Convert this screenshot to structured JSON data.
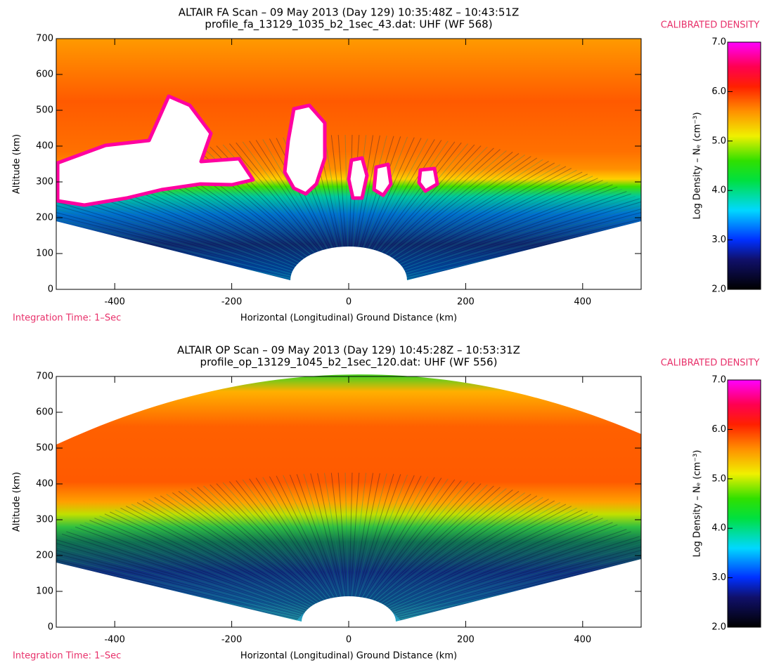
{
  "chart_data": [
    {
      "type": "heatmap",
      "title": "ALTAIR FA Scan – 09 May 2013 (Day 129) 10:35:48Z – 10:43:51Z",
      "subtitle": "profile_fa_13129_1035_b2_1sec_43.dat: UHF (WF 568)",
      "x_label": "Horizontal (Longitudinal) Ground Distance (km)",
      "y_label": "Altitude (km)",
      "annotation": "Integration Time: 1–Sec",
      "xlim": [
        -500,
        500
      ],
      "xticks": [
        -400,
        -200,
        0,
        200,
        400
      ],
      "ylim": [
        0,
        700
      ],
      "yticks": [
        0,
        100,
        200,
        300,
        400,
        500,
        600,
        700
      ],
      "colorbar_title": "CALIBRATED DENSITY",
      "colorbar_label": "Log Density – Nₑ (cm⁻³)",
      "clim": [
        2,
        7
      ],
      "cticks": [
        {
          "value": 2,
          "label": "2.0"
        },
        {
          "value": 3,
          "label": "3.0"
        },
        {
          "value": 4,
          "label": "4.0"
        },
        {
          "value": 5,
          "label": "5.0"
        },
        {
          "value": 6,
          "label": "6.0"
        },
        {
          "value": 7,
          "label": "7.0"
        }
      ]
    },
    {
      "type": "heatmap",
      "title": "ALTAIR OP Scan – 09 May 2013 (Day 129) 10:45:28Z – 10:53:31Z",
      "subtitle": "profile_op_13129_1045_b2_1sec_120.dat: UHF (WF 556)",
      "x_label": "Horizontal (Longitudinal) Ground Distance (km)",
      "y_label": "Altitude (km)",
      "annotation": "Integration Time: 1–Sec",
      "xlim": [
        -500,
        500
      ],
      "xticks": [
        -400,
        -200,
        0,
        200,
        400
      ],
      "ylim": [
        0,
        700
      ],
      "yticks": [
        0,
        100,
        200,
        300,
        400,
        500,
        600,
        700
      ],
      "colorbar_title": "CALIBRATED DENSITY",
      "colorbar_label": "Log Density – Nₑ (cm⁻³)",
      "clim": [
        2,
        7
      ],
      "cticks": [
        {
          "value": 2,
          "label": "2.0"
        },
        {
          "value": 3,
          "label": "3.0"
        },
        {
          "value": 4,
          "label": "4.0"
        },
        {
          "value": 5,
          "label": "5.0"
        },
        {
          "value": 6,
          "label": "6.0"
        },
        {
          "value": 7,
          "label": "7.0"
        }
      ]
    }
  ]
}
